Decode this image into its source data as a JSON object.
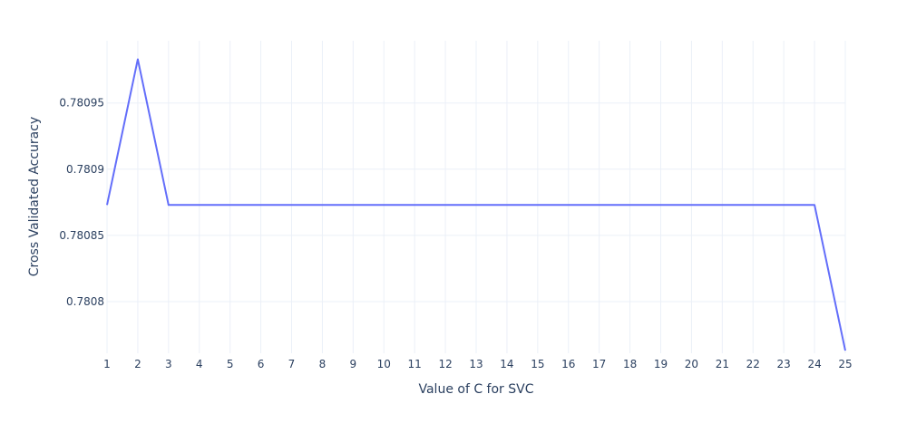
{
  "chart_data": {
    "type": "line",
    "title": "",
    "xlabel": "Value of C for SVC",
    "ylabel": "Cross Validated Accuracy",
    "x": [
      1,
      2,
      3,
      4,
      5,
      6,
      7,
      8,
      9,
      10,
      11,
      12,
      13,
      14,
      15,
      16,
      17,
      18,
      19,
      20,
      21,
      22,
      23,
      24,
      25
    ],
    "x_ticks": [
      "1",
      "2",
      "3",
      "4",
      "5",
      "6",
      "7",
      "8",
      "9",
      "10",
      "11",
      "12",
      "13",
      "14",
      "15",
      "16",
      "17",
      "18",
      "19",
      "20",
      "21",
      "22",
      "23",
      "24",
      "25"
    ],
    "y_ticks": [
      {
        "value": 0.7808,
        "label": "0.7808"
      },
      {
        "value": 0.78085,
        "label": "0.78085"
      },
      {
        "value": 0.7809,
        "label": "0.7809"
      },
      {
        "value": 0.78095,
        "label": "0.78095"
      }
    ],
    "series": [
      {
        "values": [
          0.780873,
          0.780983,
          0.780873,
          0.780873,
          0.780873,
          0.780873,
          0.780873,
          0.780873,
          0.780873,
          0.780873,
          0.780873,
          0.780873,
          0.780873,
          0.780873,
          0.780873,
          0.780873,
          0.780873,
          0.780873,
          0.780873,
          0.780873,
          0.780873,
          0.780873,
          0.780873,
          0.780873,
          0.780763
        ],
        "color": "#636efa"
      }
    ],
    "xlim": [
      1,
      25
    ],
    "ylim": [
      0.780761,
      0.780997
    ],
    "grid": true,
    "legend": "none",
    "colors": {
      "grid": "#ebf0f8",
      "text": "#2a3f5f",
      "line": "#636efa"
    }
  }
}
